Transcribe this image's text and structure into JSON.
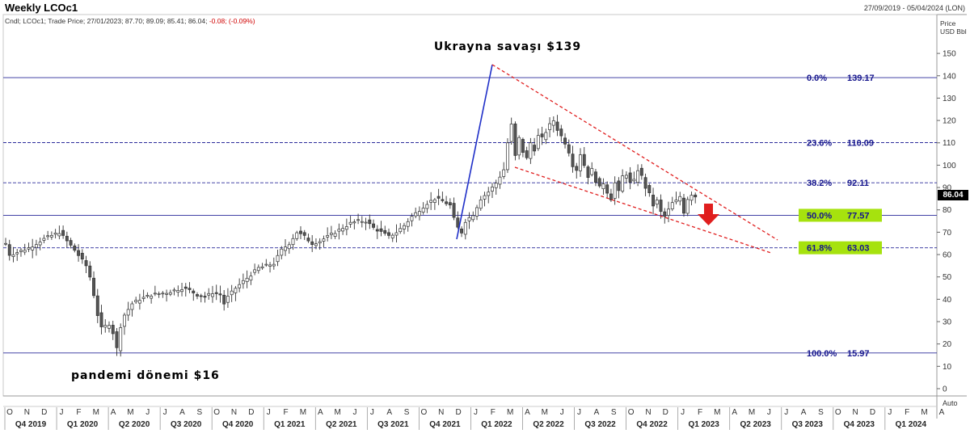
{
  "header": {
    "title": "Weekly LCOc1",
    "date_range": "27/09/2019 - 05/04/2024 (LON)",
    "ohlc_label": "Cndl; LCOc1; Trade Price; 27/01/2023; 87.70; 89.09; 85.41; 86.04;",
    "ohlc_change": "-0.08; (-0.09%)"
  },
  "chart_data": {
    "type": "candlestick",
    "ylabel": "Price USD Bbl",
    "ylim": [
      -5,
      155
    ],
    "yticks": [
      0,
      10,
      20,
      30,
      40,
      50,
      60,
      70,
      80,
      90,
      100,
      110,
      120,
      130,
      140,
      150
    ],
    "last_price": "86.04",
    "auto_label": "Auto",
    "x_months": [
      "O",
      "N",
      "D",
      "J",
      "F",
      "M",
      "A",
      "M",
      "J",
      "J",
      "A",
      "S",
      "O",
      "N",
      "D",
      "J",
      "F",
      "M",
      "A",
      "M",
      "J",
      "J",
      "A",
      "S",
      "O",
      "N",
      "D",
      "J",
      "F",
      "M",
      "A",
      "M",
      "J",
      "J",
      "A",
      "S",
      "O",
      "N",
      "D",
      "J",
      "F",
      "M",
      "A",
      "M",
      "J",
      "J",
      "A",
      "S",
      "O",
      "N",
      "D",
      "J",
      "F",
      "M",
      "A"
    ],
    "x_quarters": [
      "Q4 2019",
      "Q1 2020",
      "Q2 2020",
      "Q3 2020",
      "Q4 2020",
      "Q1 2021",
      "Q2 2021",
      "Q3 2021",
      "Q4 2021",
      "Q1 2022",
      "Q2 2022",
      "Q3 2022",
      "Q4 2022",
      "Q1 2023",
      "Q2 2023",
      "Q3 2023",
      "Q4 2023",
      "Q1 2024"
    ],
    "fib_levels": [
      {
        "pct": "0.0%",
        "value": "139.17",
        "price": 139.17,
        "highlight": false
      },
      {
        "pct": "23.6%",
        "value": "110.09",
        "price": 110.09,
        "highlight": false
      },
      {
        "pct": "38.2%",
        "value": "92.11",
        "price": 92.11,
        "highlight": false
      },
      {
        "pct": "50.0%",
        "value": "77.57",
        "price": 77.57,
        "highlight": true
      },
      {
        "pct": "61.8%",
        "value": "63.03",
        "price": 63.03,
        "highlight": true
      },
      {
        "pct": "100.0%",
        "value": "15.97",
        "price": 15.97,
        "highlight": false
      }
    ],
    "annotations": {
      "top": "Ukrayna savaşı $139",
      "bottom": "pandemi dönemi $16"
    },
    "close_path": [
      [
        0,
        65
      ],
      [
        1,
        60
      ],
      [
        3,
        61
      ],
      [
        6,
        63
      ],
      [
        10,
        67
      ],
      [
        14,
        70
      ],
      [
        18,
        62
      ],
      [
        21,
        55
      ],
      [
        22,
        50
      ],
      [
        23,
        42
      ],
      [
        24,
        33
      ],
      [
        25,
        27
      ],
      [
        27,
        29
      ],
      [
        28,
        25
      ],
      [
        29,
        18
      ],
      [
        30,
        28
      ],
      [
        31,
        33
      ],
      [
        33,
        38
      ],
      [
        35,
        40
      ],
      [
        38,
        42
      ],
      [
        42,
        43
      ],
      [
        46,
        45
      ],
      [
        48,
        44
      ],
      [
        50,
        42
      ],
      [
        52,
        41
      ],
      [
        54,
        43
      ],
      [
        56,
        42
      ],
      [
        57,
        38
      ],
      [
        58,
        41
      ],
      [
        60,
        45
      ],
      [
        62,
        48
      ],
      [
        64,
        51
      ],
      [
        66,
        54
      ],
      [
        68,
        55
      ],
      [
        70,
        56
      ],
      [
        72,
        62
      ],
      [
        74,
        65
      ],
      [
        76,
        70
      ],
      [
        78,
        68
      ],
      [
        80,
        65
      ],
      [
        82,
        66
      ],
      [
        84,
        68
      ],
      [
        86,
        70
      ],
      [
        88,
        72
      ],
      [
        90,
        74
      ],
      [
        92,
        75
      ],
      [
        94,
        75
      ],
      [
        96,
        72
      ],
      [
        98,
        70
      ],
      [
        100,
        68
      ],
      [
        102,
        70
      ],
      [
        104,
        73
      ],
      [
        106,
        77
      ],
      [
        108,
        80
      ],
      [
        110,
        83
      ],
      [
        112,
        85
      ],
      [
        114,
        84
      ],
      [
        116,
        82
      ],
      [
        117,
        76
      ],
      [
        118,
        72
      ],
      [
        119,
        70
      ],
      [
        120,
        75
      ],
      [
        122,
        78
      ],
      [
        124,
        85
      ],
      [
        126,
        88
      ],
      [
        128,
        92
      ],
      [
        130,
        98
      ],
      [
        131,
        110
      ],
      [
        132,
        118
      ],
      [
        133,
        104
      ],
      [
        134,
        112
      ],
      [
        135,
        106
      ],
      [
        136,
        103
      ],
      [
        137,
        110
      ],
      [
        138,
        107
      ],
      [
        139,
        113
      ],
      [
        140,
        112
      ],
      [
        141,
        115
      ],
      [
        142,
        118
      ],
      [
        143,
        120
      ],
      [
        144,
        116
      ],
      [
        145,
        113
      ],
      [
        146,
        110
      ],
      [
        147,
        106
      ],
      [
        148,
        100
      ],
      [
        149,
        98
      ],
      [
        150,
        105
      ],
      [
        151,
        100
      ],
      [
        152,
        95
      ],
      [
        153,
        98
      ],
      [
        154,
        93
      ],
      [
        155,
        90
      ],
      [
        156,
        92
      ],
      [
        157,
        88
      ],
      [
        158,
        85
      ],
      [
        159,
        92
      ],
      [
        160,
        88
      ],
      [
        161,
        95
      ],
      [
        162,
        96
      ],
      [
        163,
        92
      ],
      [
        164,
        93
      ],
      [
        165,
        98
      ],
      [
        166,
        95
      ],
      [
        167,
        90
      ],
      [
        168,
        87
      ],
      [
        169,
        82
      ],
      [
        170,
        84
      ],
      [
        171,
        79
      ],
      [
        172,
        77
      ],
      [
        173,
        80
      ],
      [
        174,
        83
      ],
      [
        175,
        84
      ],
      [
        176,
        86
      ],
      [
        177,
        79
      ],
      [
        178,
        85
      ],
      [
        179,
        87
      ],
      [
        180,
        86
      ]
    ]
  }
}
